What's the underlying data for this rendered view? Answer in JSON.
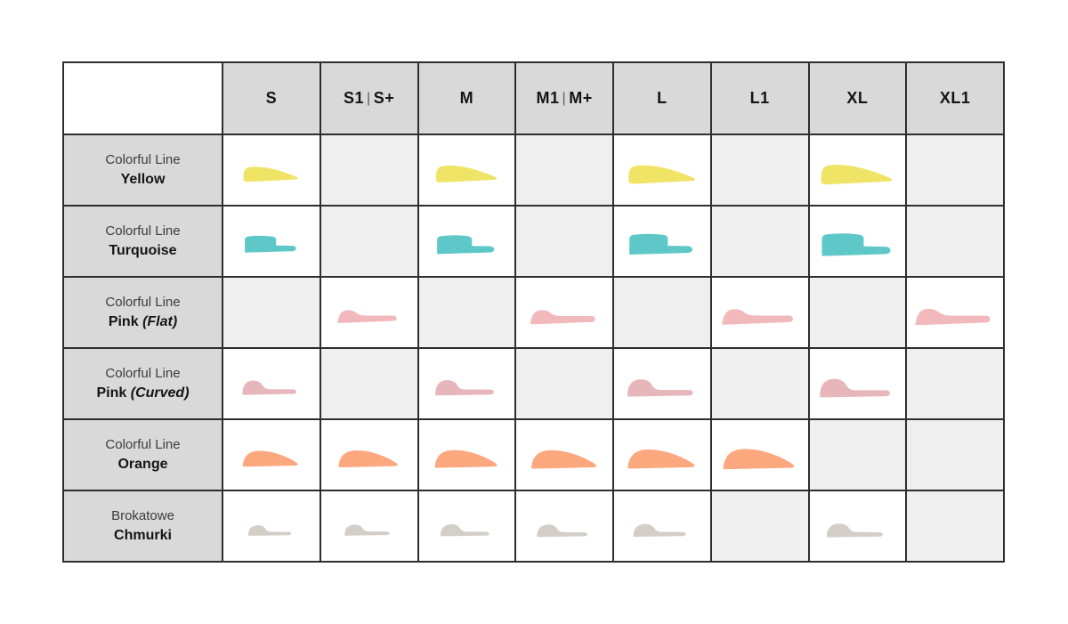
{
  "chart_data": {
    "type": "table",
    "columns": [
      "S",
      "S1|S+",
      "M",
      "M1|M+",
      "L",
      "L1",
      "XL",
      "XL1"
    ],
    "rows": [
      {
        "category": "Colorful Line",
        "name": "Yellow",
        "suffix": "",
        "shape": "wedge",
        "color": "#f0e466",
        "availability": [
          true,
          false,
          true,
          false,
          true,
          false,
          true,
          false
        ]
      },
      {
        "category": "Colorful Line",
        "name": "Turquoise",
        "suffix": "",
        "shape": "step",
        "color": "#5ec8c9",
        "availability": [
          true,
          false,
          true,
          false,
          true,
          false,
          true,
          false
        ]
      },
      {
        "category": "Colorful Line",
        "name": "Pink",
        "suffix": "(Flat)",
        "shape": "bump-flat",
        "color": "#f2b9bc",
        "availability": [
          false,
          true,
          false,
          true,
          false,
          true,
          false,
          true
        ]
      },
      {
        "category": "Colorful Line",
        "name": "Pink",
        "suffix": "(Curved)",
        "shape": "dome-tail",
        "color": "#e6b6bb",
        "availability": [
          true,
          false,
          true,
          false,
          true,
          false,
          true,
          false
        ]
      },
      {
        "category": "Colorful Line",
        "name": "Orange",
        "suffix": "",
        "shape": "airfoil",
        "color": "#fca87f",
        "availability": [
          true,
          true,
          true,
          true,
          true,
          true,
          false,
          false
        ]
      },
      {
        "category": "Brokatowe",
        "name": "Chmurki",
        "suffix": "",
        "shape": "cloud",
        "color": "#d3cfc8",
        "availability": [
          true,
          true,
          true,
          true,
          true,
          false,
          true,
          false
        ]
      }
    ]
  },
  "styles": {
    "header_bg": "#d9d9d9",
    "label_bg": "#d9d9d9",
    "empty_cell_bg": "#efefef",
    "available_cell_bg": "#ffffff",
    "border_color": "#2e2e2e"
  }
}
